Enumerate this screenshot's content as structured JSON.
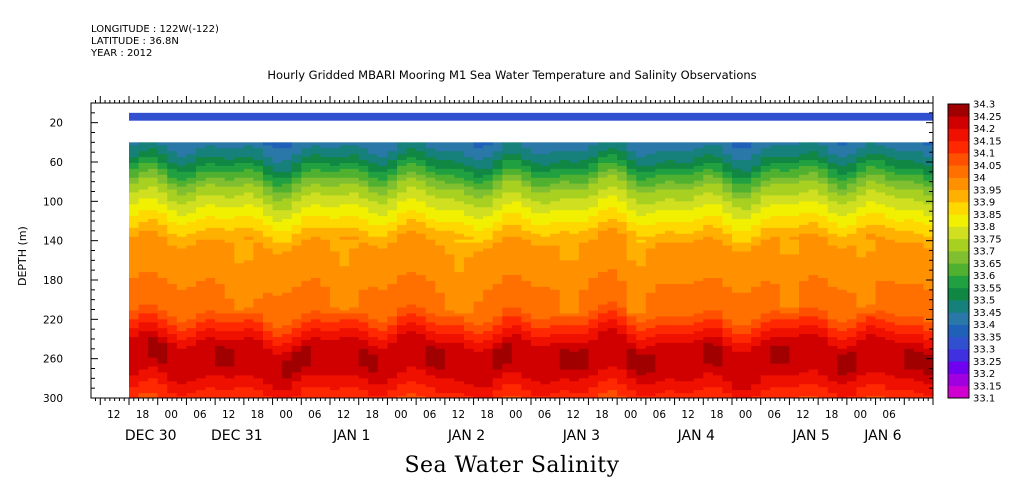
{
  "header": {
    "longitude": "LONGITUDE : 122W(-122)",
    "latitude": "LATITUDE : 36.8N",
    "year": "YEAR : 2012"
  },
  "chart_data": {
    "type": "heatmap",
    "title": "Hourly Gridded MBARI Mooring M1 Sea Water Temperature and Salinity Observations",
    "xlabel": "Sea Water Salinity",
    "ylabel": "DEPTH (m)",
    "x_hours": [
      6,
      162
    ],
    "y_depth_range": [
      0,
      300
    ],
    "y_ticks": [
      20,
      60,
      100,
      140,
      180,
      220,
      260,
      300
    ],
    "x_hour_tick_labels": [
      "12",
      "18",
      "00",
      "06",
      "12",
      "18",
      "00",
      "06",
      "12",
      "18",
      "00",
      "06",
      "12",
      "18",
      "00",
      "06",
      "12",
      "18",
      "00",
      "06",
      "12",
      "18",
      "00",
      "06",
      "12",
      "18",
      "00",
      "06"
    ],
    "x_day_labels": [
      {
        "label": "DEC 30",
        "hour": 18
      },
      {
        "label": "DEC 31",
        "hour": 36
      },
      {
        "label": "JAN  1",
        "hour": 60
      },
      {
        "label": "JAN  2",
        "hour": 84
      },
      {
        "label": "JAN  3",
        "hour": 108
      },
      {
        "label": "JAN  4",
        "hour": 132
      },
      {
        "label": "JAN  5",
        "hour": 156
      },
      {
        "label": "JAN  6",
        "hour": 171
      }
    ],
    "data_start_hour": 12,
    "data_end_hour": 180,
    "surface_band": {
      "depth_range": [
        10,
        18
      ],
      "value": 33.3
    },
    "missing_band": {
      "depth_range": [
        18,
        40
      ]
    },
    "profile_start_depth": 40,
    "colorbar": {
      "levels": [
        "33.1",
        "33.15",
        "33.2",
        "33.25",
        "33.3",
        "33.35",
        "33.4",
        "33.45",
        "33.5",
        "33.55",
        "33.6",
        "33.65",
        "33.7",
        "33.75",
        "33.8",
        "33.85",
        "33.9",
        "33.95",
        "34",
        "34.05",
        "34.1",
        "34.15",
        "34.2",
        "34.25",
        "34.3"
      ],
      "colors": [
        "#d000d0",
        "#a000e0",
        "#7000f0",
        "#4030e0",
        "#3050d0",
        "#1f60b8",
        "#2a78a8",
        "#16807a",
        "#108844",
        "#20a040",
        "#50b030",
        "#80c030",
        "#a8d020",
        "#d0e020",
        "#f0f000",
        "#ffd800",
        "#ffb000",
        "#ff9000",
        "#ff7000",
        "#ff5000",
        "#ff2800",
        "#f01000",
        "#d00000",
        "#a00000"
      ]
    }
  }
}
